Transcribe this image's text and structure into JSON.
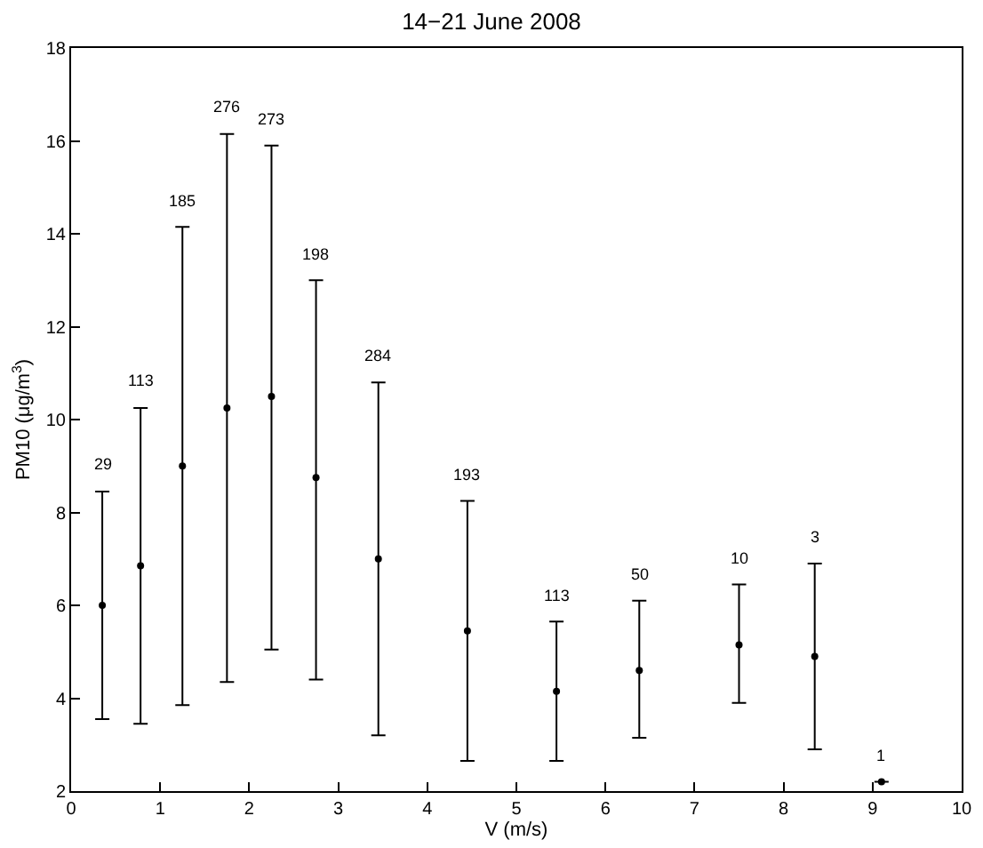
{
  "chart_data": {
    "type": "scatter",
    "title": "14−21 June 2008",
    "xlabel": "V (m/s)",
    "ylabel": "PM10 (μg/m$^{3}$)",
    "xlim": [
      0,
      10
    ],
    "xticks": [
      0,
      1,
      2,
      3,
      4,
      5,
      6,
      7,
      8,
      9,
      10
    ],
    "ylim": [
      2,
      18
    ],
    "yticks": [
      2,
      4,
      6,
      8,
      10,
      12,
      14,
      16,
      18
    ],
    "marker": "circle",
    "series": [
      {
        "color": "#000000",
        "x": [
          0.35,
          0.78,
          1.25,
          1.75,
          2.25,
          2.75,
          3.45,
          4.45,
          5.45,
          6.38,
          7.5,
          8.35,
          9.1
        ],
        "values": [
          6.0,
          6.85,
          9.0,
          10.25,
          10.5,
          8.75,
          7.0,
          5.45,
          4.15,
          4.6,
          5.15,
          4.9,
          2.2
        ],
        "errors": [
          [
            3.55,
            8.45
          ],
          [
            3.45,
            10.25
          ],
          [
            3.85,
            14.15
          ],
          [
            4.35,
            16.15
          ],
          [
            5.05,
            15.9
          ],
          [
            4.4,
            13.0
          ],
          [
            3.2,
            10.8
          ],
          [
            2.65,
            8.25
          ],
          [
            2.65,
            5.65
          ],
          [
            3.15,
            6.1
          ],
          [
            3.9,
            6.45
          ],
          [
            2.9,
            6.9
          ],
          null
        ]
      }
    ],
    "annotations": [
      {
        "text": "29",
        "x": 0.35,
        "y": 8.45
      },
      {
        "text": "113",
        "x": 0.78,
        "y": 10.25
      },
      {
        "text": "185",
        "x": 1.25,
        "y": 14.15
      },
      {
        "text": "276",
        "x": 1.75,
        "y": 16.15
      },
      {
        "text": "273",
        "x": 2.25,
        "y": 15.9
      },
      {
        "text": "198",
        "x": 2.75,
        "y": 13.0
      },
      {
        "text": "284",
        "x": 3.45,
        "y": 10.8
      },
      {
        "text": "193",
        "x": 4.45,
        "y": 8.25
      },
      {
        "text": "113",
        "x": 5.45,
        "y": 5.65
      },
      {
        "text": "50",
        "x": 6.38,
        "y": 6.1
      },
      {
        "text": "10",
        "x": 7.5,
        "y": 6.45
      },
      {
        "text": "3",
        "x": 8.35,
        "y": 6.9
      },
      {
        "text": "1",
        "x": 9.1,
        "y": 2.2
      }
    ]
  }
}
